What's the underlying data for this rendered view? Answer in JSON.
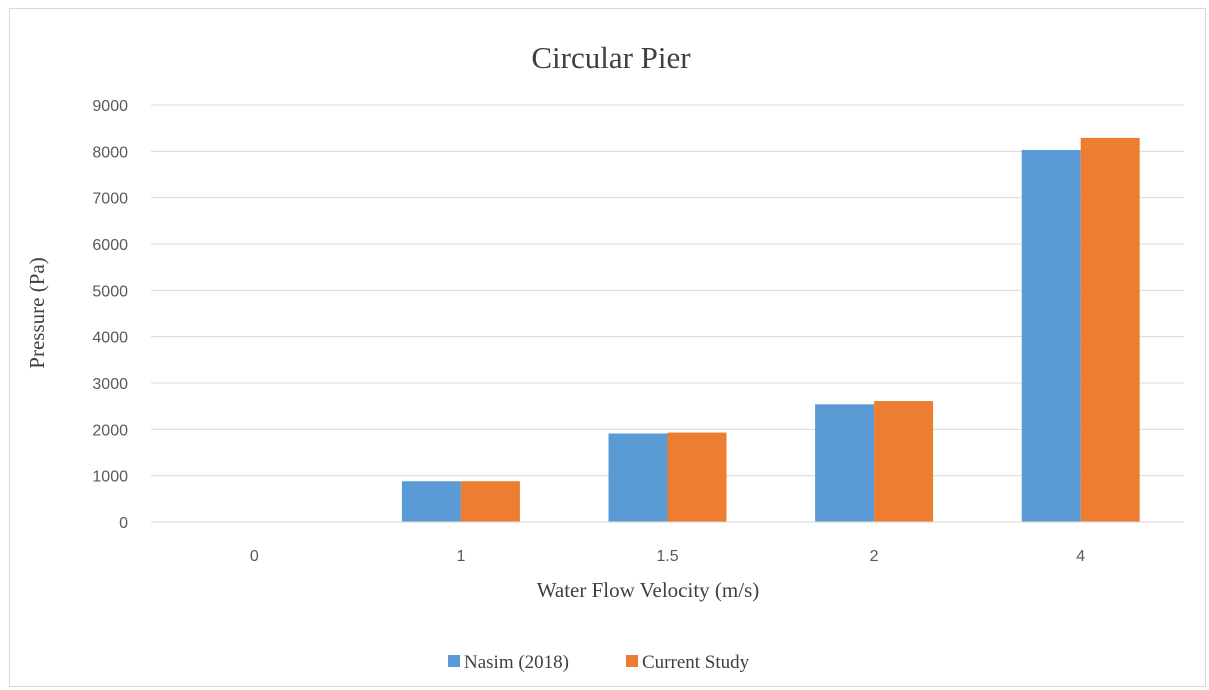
{
  "chart_data": {
    "type": "bar",
    "title": "Circular Pier",
    "xlabel": "Water Flow Velocity (m/s)",
    "ylabel": "Pressure (Pa)",
    "categories": [
      "0",
      "1",
      "1.5",
      "2",
      "4"
    ],
    "ylim": [
      0,
      9000
    ],
    "yticks": [
      0,
      1000,
      2000,
      3000,
      4000,
      5000,
      6000,
      7000,
      8000,
      9000
    ],
    "grid": true,
    "legend_position": "bottom",
    "series": [
      {
        "name": "Nasim (2018)",
        "color": "#5b9bd5",
        "values": [
          0,
          880,
          1910,
          2540,
          8030
        ]
      },
      {
        "name": "Current Study",
        "color": "#ed7d31",
        "values": [
          0,
          880,
          1930,
          2610,
          8290
        ]
      }
    ]
  }
}
